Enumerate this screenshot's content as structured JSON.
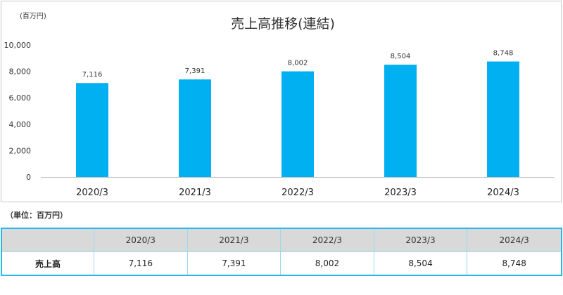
{
  "chart_data": {
    "type": "bar",
    "title": "売上高推移(連結)",
    "unit_label": "(百万円)",
    "categories": [
      "2020/3",
      "2021/3",
      "2022/3",
      "2023/3",
      "2024/3"
    ],
    "values": [
      7116,
      7391,
      8002,
      8504,
      8748
    ],
    "value_labels": [
      "7,116",
      "7,391",
      "8,002",
      "8,504",
      "8,748"
    ],
    "yticks": [
      0,
      2000,
      4000,
      6000,
      8000,
      10000
    ],
    "ytick_labels": [
      "0",
      "2,000",
      "4,000",
      "6,000",
      "8,000",
      "10,000"
    ],
    "ylim": [
      0,
      10000
    ],
    "grid": false,
    "bar_color": "#00b0f0"
  },
  "table": {
    "unit_note": "（単位：百万円）",
    "header": [
      "",
      "2020/3",
      "2021/3",
      "2022/3",
      "2023/3",
      "2024/3"
    ],
    "row_label": "売上高",
    "values": [
      "7,116",
      "7,391",
      "8,002",
      "8,504",
      "8,748"
    ]
  }
}
